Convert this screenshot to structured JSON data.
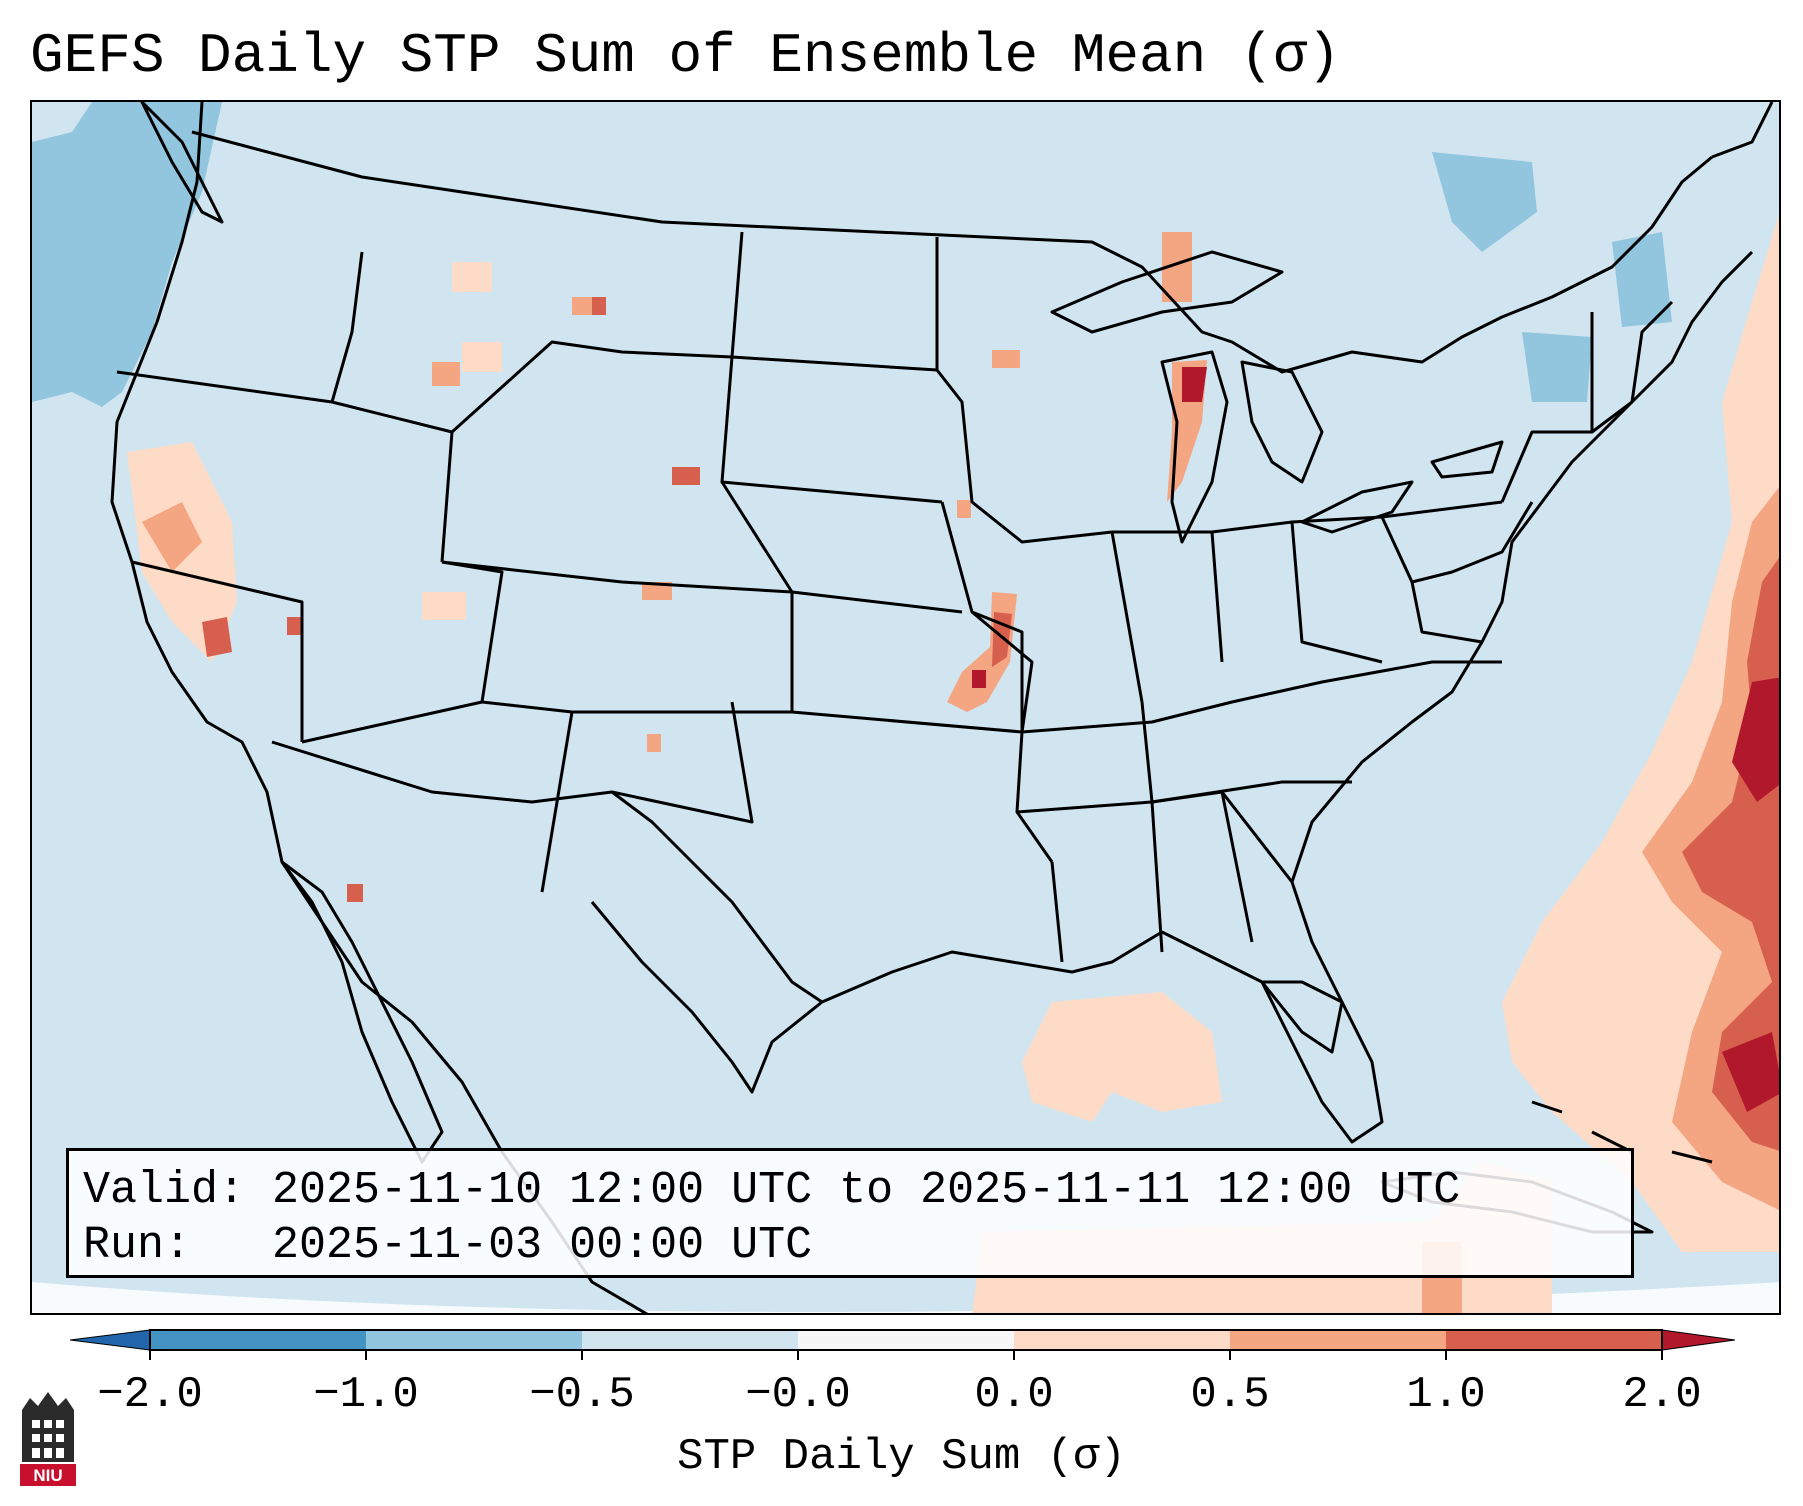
{
  "title": "GEFS Daily STP Sum of Ensemble Mean (σ)",
  "info": {
    "valid_label": "Valid:",
    "valid_value": "2025-11-10 12:00 UTC to 2025-11-11 12:00 UTC",
    "run_label": "Run:",
    "run_value": "2025-11-03 00:00 UTC"
  },
  "colorbar": {
    "label": "STP Daily Sum (σ)",
    "ticks": [
      "−2.0",
      "−1.0",
      "−0.5",
      "−0.0",
      "0.0",
      "0.5",
      "1.0",
      "2.0"
    ],
    "colors": [
      "#2166ac",
      "#4393c3",
      "#92c5de",
      "#d1e5f0",
      "#f7f7f7",
      "#fddbc7",
      "#f4a582",
      "#d6604d",
      "#b2182b"
    ]
  },
  "logo": {
    "text": "NIU",
    "accent": "#c8102e"
  },
  "map": {
    "background_color": "#d1e5f0",
    "features": [
      "coastlines",
      "state-borders",
      "country-borders",
      "great-lakes"
    ],
    "notable_anomalies": [
      {
        "region": "Lake Michigan",
        "category": "high"
      },
      {
        "region": "Missouri",
        "category": "high"
      },
      {
        "region": "Western Atlantic",
        "category": "high"
      },
      {
        "region": "Gulf of Mexico",
        "category": "slightly positive"
      },
      {
        "region": "Pacific Northwest coast",
        "category": "negative"
      }
    ]
  }
}
